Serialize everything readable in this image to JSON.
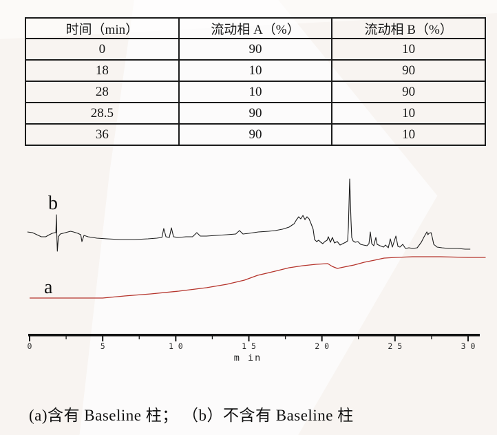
{
  "page": {
    "background_color": "#f8f4f1",
    "text_color": "#161616"
  },
  "table": {
    "headers": [
      "时间（min）",
      "流动相 A（%）",
      "流动相 B（%）"
    ],
    "rows": [
      [
        "0",
        "90",
        "10"
      ],
      [
        "18",
        "10",
        "90"
      ],
      [
        "28",
        "10",
        "90"
      ],
      [
        "28.5",
        "90",
        "10"
      ],
      [
        "36",
        "90",
        "10"
      ]
    ]
  },
  "chart_data": {
    "type": "line",
    "title": "",
    "xlabel": "m in",
    "ylabel": "",
    "xlim": [
      0,
      30
    ],
    "x_major_ticks": [
      0,
      5,
      10,
      15,
      20,
      25,
      30
    ],
    "x_tick_labels": [
      "0",
      "5",
      "1 0",
      "1 5",
      "2 0",
      "2 5",
      "3 0"
    ],
    "x_minor_ticks": [
      2.5,
      7.5,
      12.5,
      17.5,
      22.5,
      27.5
    ],
    "y_axis_note": "no y axis shown; intensity in arbitrary units",
    "grid": "off",
    "legend": "inline letter labels on traces",
    "series": [
      {
        "name": "b",
        "label": "b",
        "color": "#1c1c1c",
        "meaning": "不含有 Baseline 柱",
        "points": [
          [
            -0.15,
            153
          ],
          [
            0.2,
            152
          ],
          [
            0.5,
            149
          ],
          [
            0.8,
            146
          ],
          [
            1.1,
            146
          ],
          [
            1.35,
            149
          ],
          [
            1.55,
            151
          ],
          [
            1.72,
            152
          ],
          [
            1.8,
            152
          ],
          [
            1.83,
            178
          ],
          [
            1.86,
            150
          ],
          [
            1.9,
            125
          ],
          [
            1.97,
            146
          ],
          [
            2.1,
            150
          ],
          [
            2.45,
            152
          ],
          [
            2.8,
            154
          ],
          [
            3.0,
            153
          ],
          [
            3.3,
            151
          ],
          [
            3.5,
            149
          ],
          [
            3.58,
            139
          ],
          [
            3.72,
            148
          ],
          [
            4.0,
            146
          ],
          [
            4.6,
            144
          ],
          [
            5.3,
            143
          ],
          [
            6.2,
            142
          ],
          [
            7.2,
            142
          ],
          [
            8.1,
            143
          ],
          [
            8.7,
            144
          ],
          [
            9.05,
            145
          ],
          [
            9.18,
            158
          ],
          [
            9.33,
            146
          ],
          [
            9.56,
            145
          ],
          [
            9.7,
            159
          ],
          [
            9.85,
            146
          ],
          [
            10.15,
            145
          ],
          [
            10.7,
            146
          ],
          [
            11.15,
            146
          ],
          [
            11.44,
            152
          ],
          [
            11.68,
            147
          ],
          [
            12.1,
            147
          ],
          [
            12.8,
            148
          ],
          [
            13.5,
            149
          ],
          [
            14.1,
            150
          ],
          [
            14.36,
            155
          ],
          [
            14.6,
            150
          ],
          [
            15.0,
            151
          ],
          [
            15.65,
            153
          ],
          [
            16.35,
            154
          ],
          [
            16.8,
            155
          ],
          [
            17.3,
            157
          ],
          [
            17.75,
            160
          ],
          [
            18.1,
            165
          ],
          [
            18.27,
            171
          ],
          [
            18.41,
            175
          ],
          [
            18.55,
            172
          ],
          [
            18.7,
            177
          ],
          [
            18.84,
            171
          ],
          [
            18.98,
            175
          ],
          [
            19.12,
            172
          ],
          [
            19.26,
            165
          ],
          [
            19.4,
            157
          ],
          [
            19.5,
            142
          ],
          [
            19.64,
            139
          ],
          [
            19.78,
            141
          ],
          [
            19.92,
            138
          ],
          [
            20.06,
            136
          ],
          [
            20.2,
            139
          ],
          [
            20.35,
            141
          ],
          [
            20.44,
            146
          ],
          [
            20.58,
            138
          ],
          [
            20.72,
            145
          ],
          [
            20.86,
            137
          ],
          [
            21.05,
            139
          ],
          [
            21.24,
            134
          ],
          [
            21.43,
            136
          ],
          [
            21.62,
            138
          ],
          [
            21.76,
            140
          ],
          [
            21.81,
            160
          ],
          [
            21.9,
            230
          ],
          [
            21.99,
            170
          ],
          [
            22.04,
            145
          ],
          [
            22.13,
            140
          ],
          [
            22.28,
            138
          ],
          [
            22.46,
            139
          ],
          [
            22.65,
            135
          ],
          [
            22.84,
            134
          ],
          [
            23.08,
            133
          ],
          [
            23.22,
            136
          ],
          [
            23.31,
            153
          ],
          [
            23.41,
            136
          ],
          [
            23.55,
            133
          ],
          [
            23.69,
            145
          ],
          [
            23.78,
            135
          ],
          [
            23.97,
            133
          ],
          [
            24.21,
            131
          ],
          [
            24.35,
            134
          ],
          [
            24.54,
            130
          ],
          [
            24.68,
            143
          ],
          [
            24.82,
            131
          ],
          [
            25.06,
            147
          ],
          [
            25.2,
            132
          ],
          [
            25.34,
            131
          ],
          [
            25.53,
            135
          ],
          [
            25.72,
            129
          ],
          [
            25.95,
            130
          ],
          [
            26.23,
            129
          ],
          [
            26.52,
            130
          ],
          [
            26.8,
            138
          ],
          [
            26.99,
            146
          ],
          [
            27.18,
            153
          ],
          [
            27.25,
            149
          ],
          [
            27.32,
            151
          ],
          [
            27.46,
            152
          ],
          [
            27.55,
            145
          ],
          [
            27.65,
            135
          ],
          [
            27.88,
            131
          ],
          [
            28.21,
            130
          ],
          [
            28.68,
            129
          ],
          [
            29.29,
            129
          ],
          [
            29.8,
            128
          ],
          [
            30.15,
            128
          ]
        ]
      },
      {
        "name": "a",
        "label": "a",
        "color": "#b5342c",
        "meaning": "含有 Baseline 柱",
        "points": [
          [
            0,
            57
          ],
          [
            5.0,
            57
          ],
          [
            6.5,
            60
          ],
          [
            8.3,
            63
          ],
          [
            10.2,
            67
          ],
          [
            12.1,
            72
          ],
          [
            13.5,
            77
          ],
          [
            14.7,
            83
          ],
          [
            15.6,
            90
          ],
          [
            16.8,
            96
          ],
          [
            17.75,
            101
          ],
          [
            18.7,
            104
          ],
          [
            19.6,
            106
          ],
          [
            20.4,
            107
          ],
          [
            20.7,
            103
          ],
          [
            21.05,
            100
          ],
          [
            21.5,
            102
          ],
          [
            22.2,
            105
          ],
          [
            22.9,
            109
          ],
          [
            23.6,
            112
          ],
          [
            24.25,
            115
          ],
          [
            25.05,
            116
          ],
          [
            26.2,
            117
          ],
          [
            28.1,
            117
          ],
          [
            30.0,
            116
          ],
          [
            31.2,
            116
          ]
        ]
      }
    ]
  },
  "caption": {
    "text": "(a)含有 Baseline 柱； （b）不含有 Baseline 柱"
  }
}
